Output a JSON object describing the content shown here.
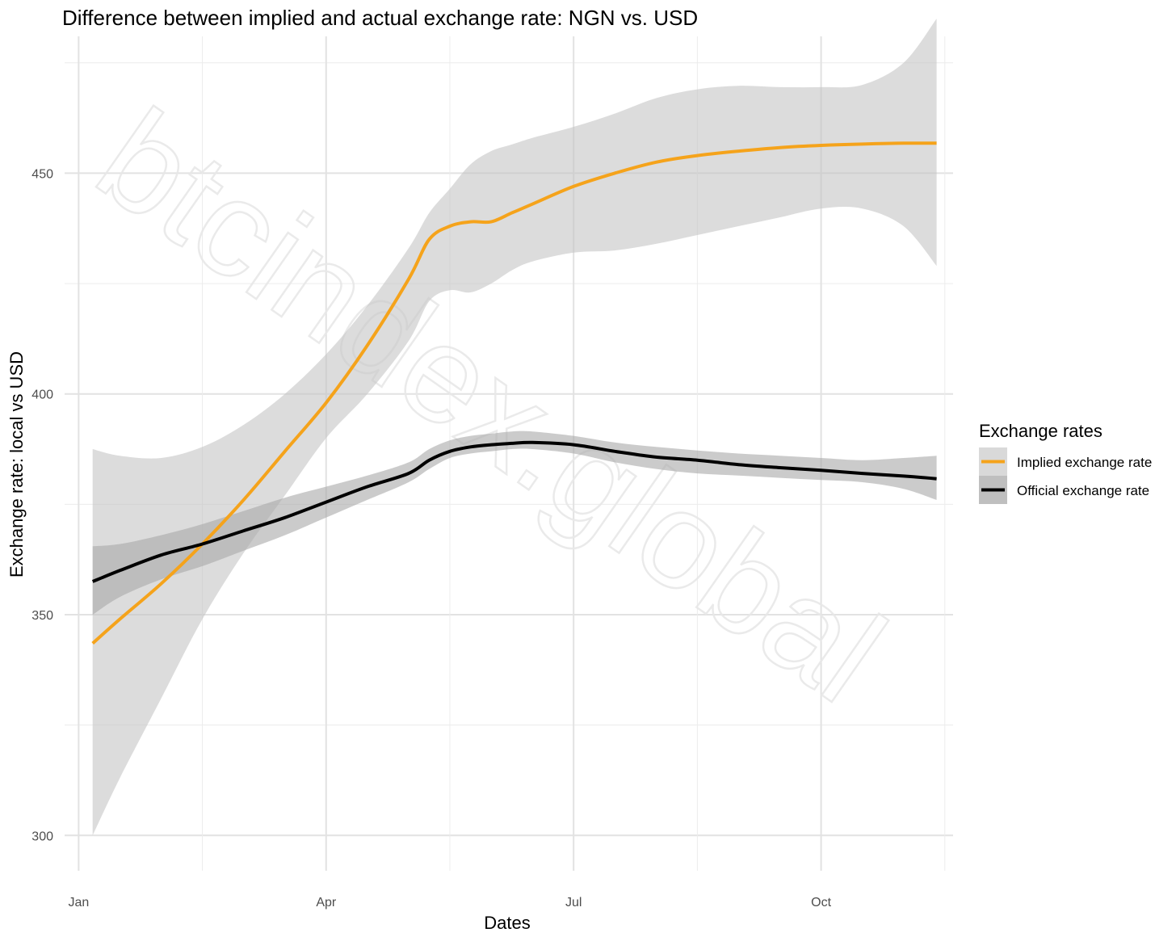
{
  "chart_data": {
    "type": "line",
    "title": "Difference between implied and actual exchange rate: NGN vs. USD",
    "xlabel": "Dates",
    "ylabel": "Exchange rate: local vs USD",
    "x_ticks": [
      {
        "label": "Jan",
        "value": 0
      },
      {
        "label": "Apr",
        "value": 3
      },
      {
        "label": "Jul",
        "value": 6
      },
      {
        "label": "Oct",
        "value": 9
      }
    ],
    "y_ticks": [
      300,
      350,
      400,
      450
    ],
    "xlim": [
      -0.17,
      10.6
    ],
    "ylim": [
      292,
      481
    ],
    "grid": true,
    "legend": {
      "title": "Exchange rates",
      "position": "right",
      "entries": [
        "Implied exchange rate",
        "Official exchange rate"
      ]
    },
    "watermark": "btcindex.global",
    "series": [
      {
        "name": "Implied exchange rate",
        "color": "#f5a31b",
        "x": [
          0.17,
          0.5,
          1.0,
          1.5,
          2.0,
          2.5,
          3.0,
          3.5,
          4.0,
          4.25,
          4.5,
          4.75,
          5.0,
          5.25,
          5.5,
          6.0,
          6.5,
          7.0,
          7.5,
          8.0,
          8.5,
          9.0,
          9.5,
          10.0,
          10.4
        ],
        "values": [
          343.5,
          349,
          357,
          366,
          376,
          387,
          398,
          411,
          426,
          435,
          438,
          439,
          439,
          441,
          443,
          447,
          450,
          452.5,
          454,
          455,
          455.8,
          456.3,
          456.6,
          456.8,
          456.8
        ],
        "lower": [
          300,
          313,
          331,
          349,
          364,
          377,
          390,
          400,
          412,
          421,
          423.5,
          423,
          425,
          428,
          430,
          432,
          432.5,
          434,
          436,
          438,
          440,
          442,
          442,
          438,
          429
        ],
        "upper": [
          387.5,
          386,
          385.5,
          388,
          393,
          400,
          409,
          420,
          433,
          441,
          446.5,
          452,
          455,
          456.5,
          458,
          460.5,
          463.5,
          467,
          469,
          469.8,
          469.5,
          469.5,
          470,
          475,
          485
        ]
      },
      {
        "name": "Official exchange rate",
        "color": "#000000",
        "x": [
          0.17,
          0.5,
          1.0,
          1.5,
          2.0,
          2.5,
          3.0,
          3.5,
          4.0,
          4.25,
          4.5,
          4.75,
          5.0,
          5.25,
          5.5,
          6.0,
          6.5,
          7.0,
          7.5,
          8.0,
          8.5,
          9.0,
          9.5,
          10.0,
          10.4
        ],
        "values": [
          357.5,
          360,
          363.5,
          366,
          369,
          372,
          375.5,
          379,
          382,
          385,
          387,
          388,
          388.5,
          388.8,
          389,
          388.5,
          387,
          385.7,
          385,
          384,
          383.3,
          382.7,
          382,
          381.4,
          380.8
        ],
        "lower": [
          350,
          354,
          358,
          361,
          364.5,
          368,
          372,
          376,
          380,
          383,
          385.5,
          386.5,
          387,
          387.5,
          387.5,
          386.5,
          384.5,
          383,
          382,
          381.5,
          381,
          380.5,
          380,
          378.5,
          376
        ],
        "upper": [
          365.5,
          366,
          368,
          370.5,
          373.5,
          376.5,
          379,
          381.5,
          384.5,
          387.5,
          389.5,
          390.5,
          391,
          391.5,
          391.5,
          390.5,
          389,
          388,
          387.2,
          386.5,
          386,
          385.5,
          385,
          385.5,
          386
        ]
      }
    ]
  }
}
